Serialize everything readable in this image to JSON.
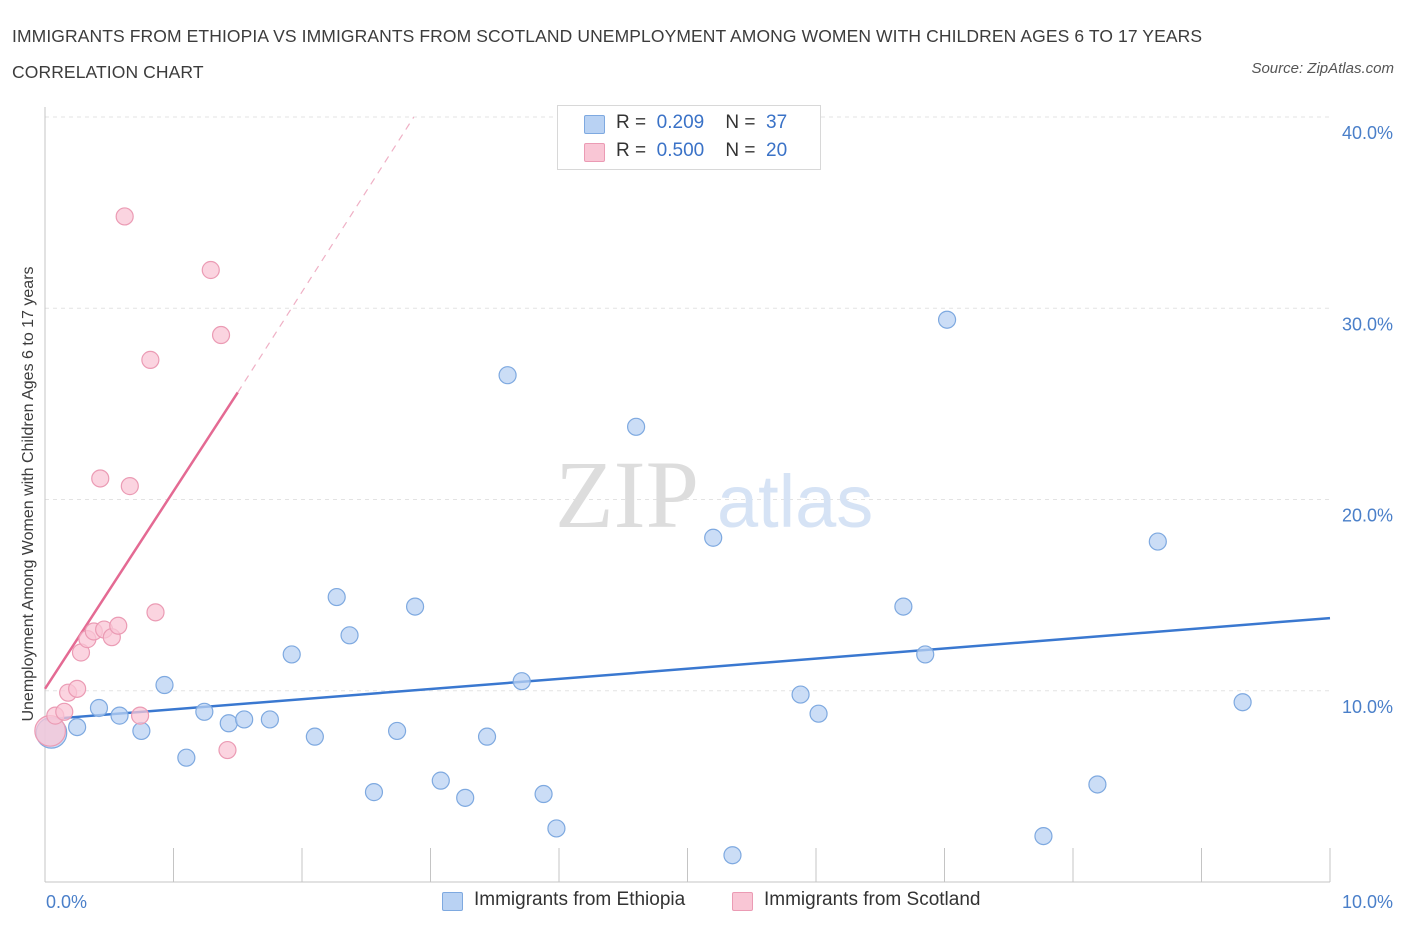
{
  "title": "IMMIGRANTS FROM ETHIOPIA VS IMMIGRANTS FROM SCOTLAND UNEMPLOYMENT AMONG WOMEN WITH CHILDREN AGES 6 TO 17 YEARS CORRELATION CHART",
  "source": "Source: ZipAtlas.com",
  "watermark": {
    "zip": "ZIP",
    "atlas": "atlas"
  },
  "legend": {
    "r_label": "R =",
    "n_label": "N =",
    "ethiopia": {
      "r": "0.209",
      "n": "37"
    },
    "scotland": {
      "r": "0.500",
      "n": "20"
    }
  },
  "colors": {
    "ethiopia_fill": "#b9d2f3",
    "ethiopia_stroke": "#7ea9e0",
    "ethiopia_line": "#3a78d0",
    "scotland_fill": "#f9c6d5",
    "scotland_stroke": "#eb9bb4",
    "scotland_line": "#e46a93",
    "tick_text": "#4a7fc9",
    "grid": "#e3e3e3"
  },
  "chart_data": {
    "type": "scatter",
    "title": "IMMIGRANTS FROM ETHIOPIA VS IMMIGRANTS FROM SCOTLAND UNEMPLOYMENT AMONG WOMEN WITH CHILDREN AGES 6 TO 17 YEARS CORRELATION CHART",
    "xlabel": "",
    "ylabel": "Unemployment Among Women with Children Ages 6 to 17 years",
    "xlim": [
      0,
      10
    ],
    "ylim": [
      0,
      40
    ],
    "x_tick_labels": [
      {
        "value": 0,
        "label": "0.0%"
      },
      {
        "value": 10,
        "label": "10.0%"
      }
    ],
    "y_tick_labels": [
      {
        "value": 10,
        "label": "10.0%"
      },
      {
        "value": 20,
        "label": "20.0%"
      },
      {
        "value": 30,
        "label": "30.0%"
      },
      {
        "value": 40,
        "label": "40.0%"
      }
    ],
    "y_gridlines": [
      10,
      20,
      30,
      40
    ],
    "grid": true,
    "legend_position": "top-center",
    "series": [
      {
        "name": "Immigrants from Ethiopia",
        "r": 0.209,
        "n": 37,
        "trend": {
          "x0": 0,
          "y0": 8.5,
          "x1": 10,
          "y1": 13.8
        },
        "points": [
          [
            0.05,
            7.8,
            1.8
          ],
          [
            0.25,
            8.1,
            1
          ],
          [
            0.42,
            9.1,
            1
          ],
          [
            0.58,
            8.7,
            1
          ],
          [
            0.75,
            7.9,
            1
          ],
          [
            0.93,
            10.3,
            1
          ],
          [
            1.1,
            6.5,
            1
          ],
          [
            1.24,
            8.9,
            1
          ],
          [
            1.43,
            8.3,
            1
          ],
          [
            1.55,
            8.5,
            1
          ],
          [
            1.75,
            8.5,
            1
          ],
          [
            1.92,
            11.9,
            1
          ],
          [
            2.1,
            7.6,
            1
          ],
          [
            2.27,
            14.9,
            1
          ],
          [
            2.37,
            12.9,
            1
          ],
          [
            2.56,
            4.7,
            1
          ],
          [
            2.74,
            7.9,
            1
          ],
          [
            2.88,
            14.4,
            1
          ],
          [
            3.08,
            5.3,
            1
          ],
          [
            3.27,
            4.4,
            1
          ],
          [
            3.44,
            7.6,
            1
          ],
          [
            3.6,
            26.5,
            1
          ],
          [
            3.71,
            10.5,
            1
          ],
          [
            3.88,
            4.6,
            1
          ],
          [
            3.98,
            2.8,
            1
          ],
          [
            4.6,
            23.8,
            1
          ],
          [
            5.2,
            18.0,
            1
          ],
          [
            5.35,
            1.4,
            1
          ],
          [
            5.88,
            9.8,
            1
          ],
          [
            6.02,
            8.8,
            1
          ],
          [
            6.68,
            14.4,
            1
          ],
          [
            6.85,
            11.9,
            1
          ],
          [
            7.02,
            29.4,
            1
          ],
          [
            7.77,
            2.4,
            1
          ],
          [
            8.19,
            5.1,
            1
          ],
          [
            8.66,
            17.8,
            1
          ],
          [
            9.32,
            9.4,
            1
          ]
        ]
      },
      {
        "name": "Immigrants from Scotland",
        "r": 0.5,
        "n": 20,
        "trend": {
          "x0": 0,
          "y0": 10.1,
          "x1": 1.5,
          "y1": 25.6
        },
        "trend_extension": {
          "x0": 1.5,
          "y0": 25.6,
          "x1": 2.87,
          "y1": 40
        },
        "points": [
          [
            0.04,
            7.9,
            1.8
          ],
          [
            0.08,
            8.7,
            1
          ],
          [
            0.15,
            8.9,
            1
          ],
          [
            0.18,
            9.9,
            1
          ],
          [
            0.25,
            10.1,
            1
          ],
          [
            0.28,
            12.0,
            1
          ],
          [
            0.33,
            12.7,
            1
          ],
          [
            0.38,
            13.1,
            1
          ],
          [
            0.43,
            21.1,
            1
          ],
          [
            0.46,
            13.2,
            1
          ],
          [
            0.52,
            12.8,
            1
          ],
          [
            0.57,
            13.4,
            1
          ],
          [
            0.62,
            34.8,
            1
          ],
          [
            0.66,
            20.7,
            1
          ],
          [
            0.74,
            8.7,
            1
          ],
          [
            0.82,
            27.3,
            1
          ],
          [
            0.86,
            14.1,
            1
          ],
          [
            1.29,
            32.0,
            1
          ],
          [
            1.37,
            28.6,
            1
          ],
          [
            1.42,
            6.9,
            1
          ]
        ]
      }
    ]
  }
}
